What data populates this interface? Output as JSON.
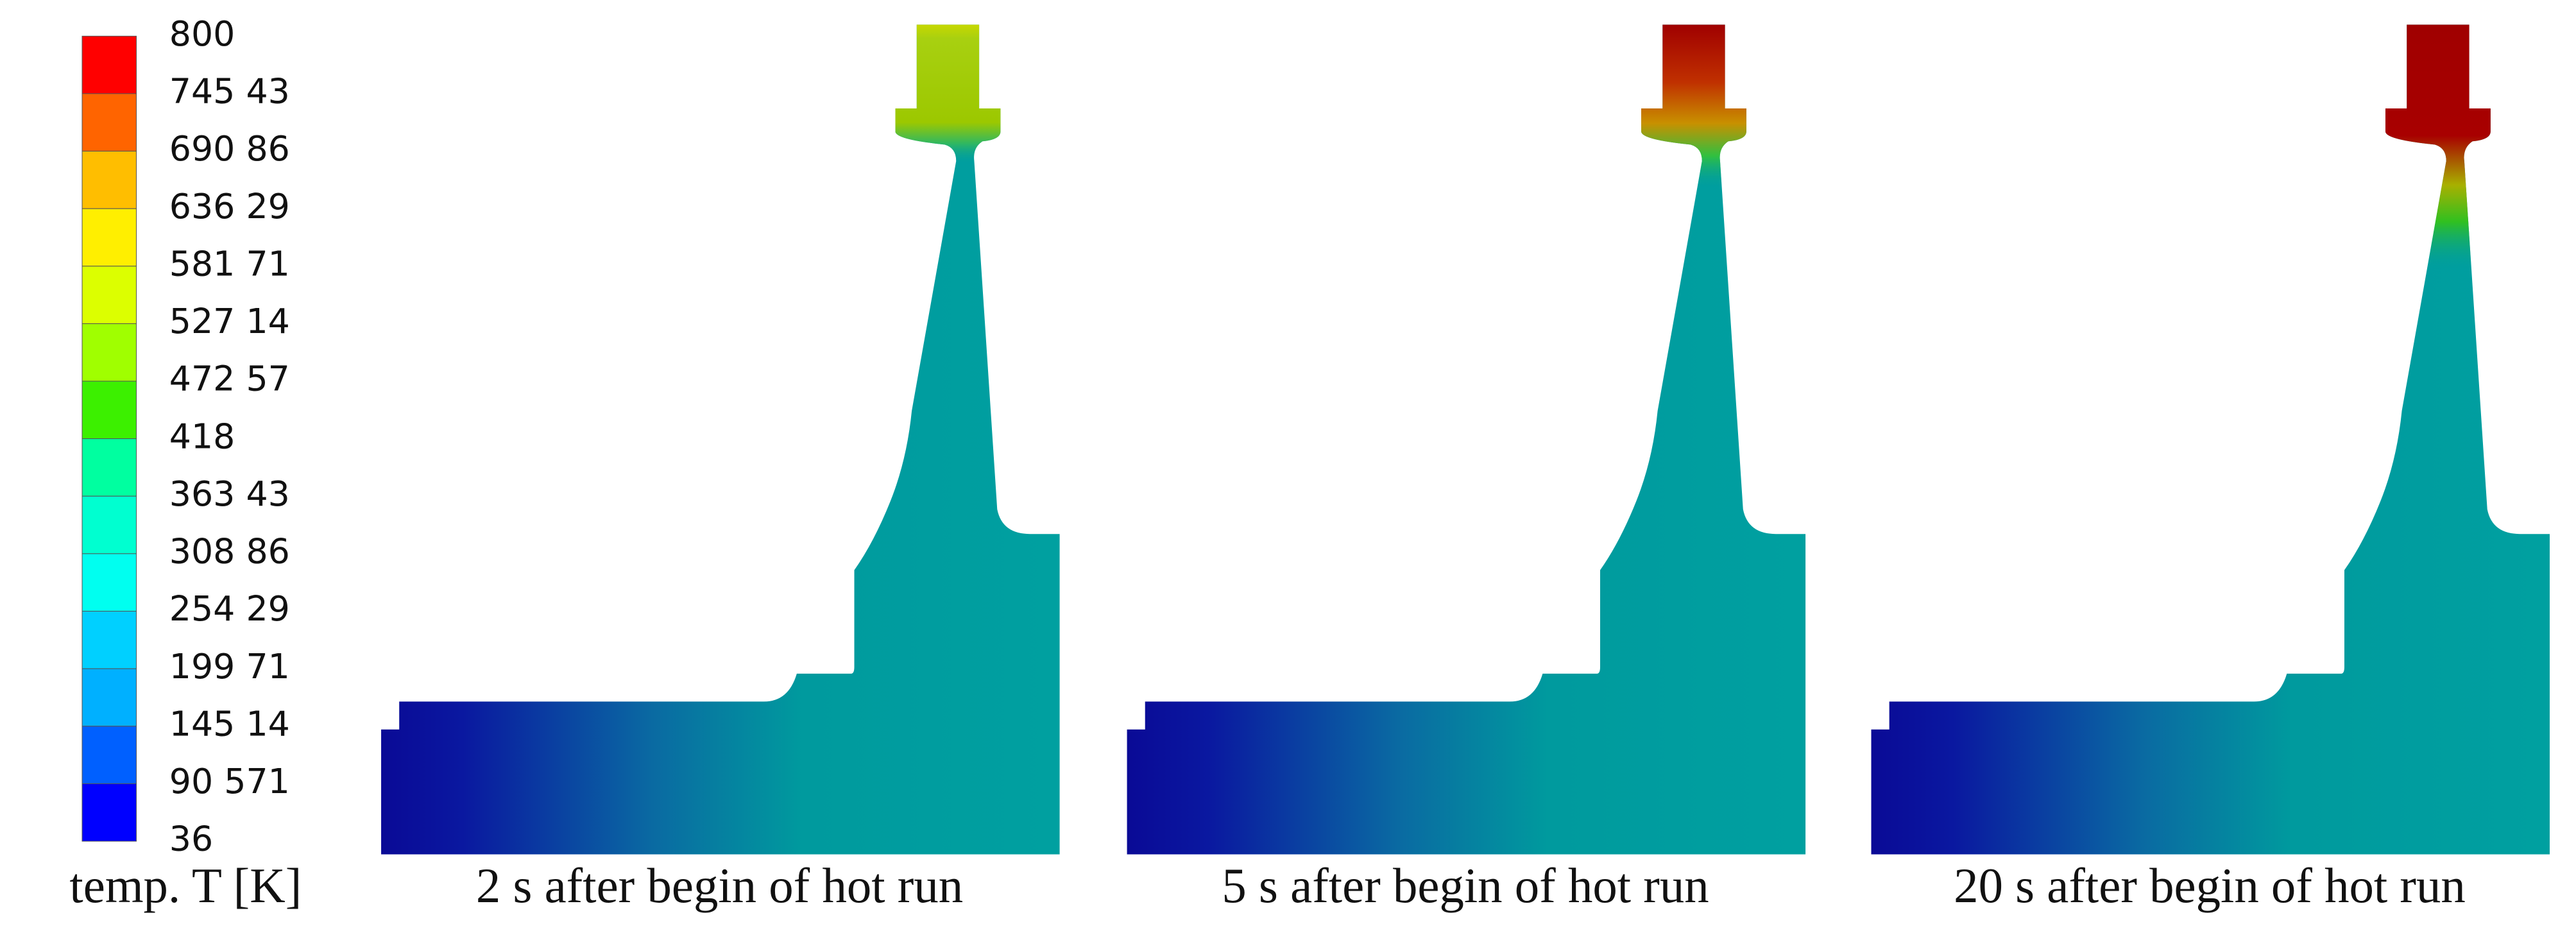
{
  "colorbar": {
    "labels": [
      "800",
      "745 43",
      "690 86",
      "636 29",
      "581 71",
      "527 14",
      "472 57",
      "418",
      "363 43",
      "308 86",
      "254 29",
      "199 71",
      "145 14",
      "90 571",
      "36"
    ],
    "title": "temp. T [K]"
  },
  "panels": [
    {
      "caption": "2 s after begin of hot run"
    },
    {
      "caption": "5 s after begin of hot run"
    },
    {
      "caption": "20 s after begin of hot run"
    }
  ]
}
